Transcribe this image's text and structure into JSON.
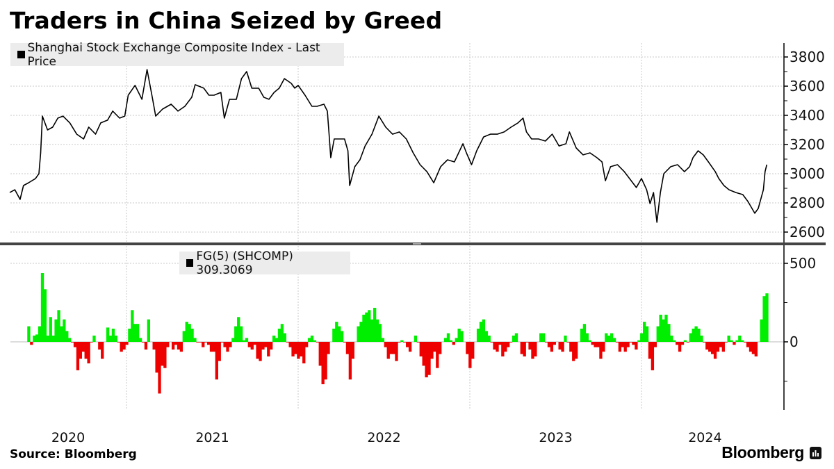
{
  "title": "Traders in China Seized by Greed",
  "footer": {
    "source": "Source: Bloomberg",
    "brand": "Bloomberg"
  },
  "colors": {
    "price": "#000000",
    "fg_positive": "#00ee00",
    "fg_negative": "#ee0000",
    "legend_bg": "#ececec"
  },
  "x_axis": {
    "range_years": [
      2020.32,
      2024.73
    ],
    "year_labels": [
      {
        "label": "2020",
        "center": 2020.66
      },
      {
        "label": "2021",
        "center": 2021.5
      },
      {
        "label": "2022",
        "center": 2022.5
      },
      {
        "label": "2023",
        "center": 2023.5
      },
      {
        "label": "2024",
        "center": 2024.37
      }
    ],
    "gridlines": [
      2021,
      2022,
      2023,
      2024
    ]
  },
  "chart_data": [
    {
      "type": "line",
      "title": "Traders in China Seized by Greed",
      "legend": "Shanghai Stock Exchange Composite Index - Last Price",
      "ylim": [
        2520,
        3890
      ],
      "yticks": [
        3800,
        3600,
        3400,
        3200,
        3000,
        2800,
        2600
      ],
      "ytick_labels": [
        "3800",
        "3600",
        "3400",
        "3200",
        "3000",
        "2800",
        "2600"
      ],
      "grid": true,
      "legend_placement": "top-left",
      "series": [
        [
          2020.32,
          2871
        ],
        [
          2020.35,
          2890
        ],
        [
          2020.38,
          2824
        ],
        [
          2020.4,
          2919
        ],
        [
          2020.43,
          2938
        ],
        [
          2020.47,
          2967
        ],
        [
          2020.49,
          3000
        ],
        [
          2020.5,
          3143
        ],
        [
          2020.51,
          3395
        ],
        [
          2020.54,
          3300
        ],
        [
          2020.57,
          3319
        ],
        [
          2020.6,
          3381
        ],
        [
          2020.63,
          3395
        ],
        [
          2020.67,
          3348
        ],
        [
          2020.71,
          3271
        ],
        [
          2020.75,
          3238
        ],
        [
          2020.78,
          3319
        ],
        [
          2020.82,
          3271
        ],
        [
          2020.85,
          3348
        ],
        [
          2020.89,
          3367
        ],
        [
          2020.92,
          3429
        ],
        [
          2020.96,
          3381
        ],
        [
          2020.99,
          3395
        ],
        [
          2021.01,
          3538
        ],
        [
          2021.05,
          3605
        ],
        [
          2021.09,
          3510
        ],
        [
          2021.12,
          3714
        ],
        [
          2021.15,
          3524
        ],
        [
          2021.17,
          3395
        ],
        [
          2021.21,
          3443
        ],
        [
          2021.26,
          3476
        ],
        [
          2021.3,
          3429
        ],
        [
          2021.34,
          3462
        ],
        [
          2021.38,
          3524
        ],
        [
          2021.4,
          3610
        ],
        [
          2021.45,
          3586
        ],
        [
          2021.48,
          3538
        ],
        [
          2021.51,
          3538
        ],
        [
          2021.55,
          3557
        ],
        [
          2021.57,
          3381
        ],
        [
          2021.6,
          3510
        ],
        [
          2021.64,
          3510
        ],
        [
          2021.67,
          3652
        ],
        [
          2021.7,
          3700
        ],
        [
          2021.73,
          3586
        ],
        [
          2021.77,
          3586
        ],
        [
          2021.8,
          3524
        ],
        [
          2021.83,
          3510
        ],
        [
          2021.86,
          3557
        ],
        [
          2021.89,
          3586
        ],
        [
          2021.92,
          3652
        ],
        [
          2021.96,
          3619
        ],
        [
          2021.98,
          3586
        ],
        [
          2022.0,
          3605
        ],
        [
          2022.04,
          3538
        ],
        [
          2022.08,
          3462
        ],
        [
          2022.11,
          3462
        ],
        [
          2022.15,
          3476
        ],
        [
          2022.17,
          3429
        ],
        [
          2022.18,
          3271
        ],
        [
          2022.19,
          3110
        ],
        [
          2022.21,
          3238
        ],
        [
          2022.24,
          3238
        ],
        [
          2022.27,
          3238
        ],
        [
          2022.29,
          3157
        ],
        [
          2022.3,
          2919
        ],
        [
          2022.33,
          3048
        ],
        [
          2022.36,
          3095
        ],
        [
          2022.39,
          3190
        ],
        [
          2022.43,
          3271
        ],
        [
          2022.47,
          3395
        ],
        [
          2022.51,
          3319
        ],
        [
          2022.55,
          3271
        ],
        [
          2022.59,
          3286
        ],
        [
          2022.63,
          3238
        ],
        [
          2022.67,
          3143
        ],
        [
          2022.71,
          3062
        ],
        [
          2022.75,
          3014
        ],
        [
          2022.79,
          2938
        ],
        [
          2022.83,
          3048
        ],
        [
          2022.87,
          3095
        ],
        [
          2022.91,
          3081
        ],
        [
          2022.96,
          3205
        ],
        [
          2022.98,
          3143
        ],
        [
          2023.01,
          3062
        ],
        [
          2023.04,
          3157
        ],
        [
          2023.08,
          3252
        ],
        [
          2023.12,
          3271
        ],
        [
          2023.16,
          3271
        ],
        [
          2023.2,
          3286
        ],
        [
          2023.24,
          3319
        ],
        [
          2023.28,
          3348
        ],
        [
          2023.31,
          3381
        ],
        [
          2023.33,
          3286
        ],
        [
          2023.36,
          3238
        ],
        [
          2023.4,
          3238
        ],
        [
          2023.44,
          3224
        ],
        [
          2023.48,
          3271
        ],
        [
          2023.52,
          3190
        ],
        [
          2023.56,
          3205
        ],
        [
          2023.58,
          3286
        ],
        [
          2023.62,
          3176
        ],
        [
          2023.66,
          3129
        ],
        [
          2023.7,
          3143
        ],
        [
          2023.74,
          3110
        ],
        [
          2023.77,
          3081
        ],
        [
          2023.79,
          2952
        ],
        [
          2023.82,
          3048
        ],
        [
          2023.86,
          3062
        ],
        [
          2023.9,
          3014
        ],
        [
          2023.94,
          2952
        ],
        [
          2023.97,
          2905
        ],
        [
          2024.0,
          2967
        ],
        [
          2024.03,
          2890
        ],
        [
          2024.05,
          2795
        ],
        [
          2024.07,
          2871
        ],
        [
          2024.09,
          2667
        ],
        [
          2024.11,
          2871
        ],
        [
          2024.13,
          3000
        ],
        [
          2024.17,
          3048
        ],
        [
          2024.21,
          3062
        ],
        [
          2024.25,
          3014
        ],
        [
          2024.28,
          3048
        ],
        [
          2024.3,
          3110
        ],
        [
          2024.33,
          3157
        ],
        [
          2024.36,
          3129
        ],
        [
          2024.39,
          3081
        ],
        [
          2024.43,
          3014
        ],
        [
          2024.45,
          2967
        ],
        [
          2024.48,
          2919
        ],
        [
          2024.51,
          2890
        ],
        [
          2024.55,
          2871
        ],
        [
          2024.59,
          2857
        ],
        [
          2024.62,
          2810
        ],
        [
          2024.66,
          2729
        ],
        [
          2024.68,
          2762
        ],
        [
          2024.71,
          2890
        ],
        [
          2024.72,
          3014
        ],
        [
          2024.73,
          3062
        ]
      ]
    },
    {
      "type": "area",
      "legend": "FG(5) (SHCOMP) 309.3069",
      "last_value": 309.3069,
      "ylim": [
        -440,
        560
      ],
      "yticks": [
        500,
        0
      ],
      "ytick_labels": [
        "500",
        "0"
      ],
      "minor_ticks": [
        250,
        -250
      ],
      "x_start": 2020.43,
      "x_end": 2024.73,
      "values": [
        99,
        -19,
        40,
        47,
        99,
        438,
        335,
        40,
        158,
        40,
        143,
        202,
        99,
        143,
        69,
        25,
        -4,
        -34,
        -181,
        -108,
        -63,
        -108,
        -137,
        -4,
        40,
        0,
        -49,
        -108,
        0,
        91,
        40,
        84,
        40,
        -4,
        -63,
        -49,
        -19,
        84,
        202,
        114,
        114,
        25,
        -4,
        -49,
        143,
        0,
        -49,
        -196,
        -329,
        -152,
        -167,
        -34,
        0,
        -49,
        -19,
        -49,
        -63,
        69,
        128,
        114,
        84,
        25,
        -4,
        -4,
        -34,
        -4,
        -19,
        -63,
        -63,
        -240,
        -122,
        -4,
        -34,
        -63,
        -34,
        25,
        99,
        158,
        99,
        10,
        25,
        -34,
        -49,
        -19,
        -108,
        -122,
        -49,
        -34,
        -93,
        -49,
        40,
        25,
        84,
        114,
        55,
        -4,
        -34,
        -93,
        -78,
        -108,
        -93,
        -137,
        -34,
        25,
        40,
        10,
        -4,
        -152,
        -270,
        -240,
        -78,
        0,
        84,
        128,
        99,
        69,
        -4,
        -78,
        -240,
        -108,
        0,
        99,
        128,
        173,
        187,
        202,
        143,
        217,
        143,
        114,
        25,
        -34,
        -108,
        -78,
        -78,
        -122,
        -4,
        10,
        -4,
        -34,
        -63,
        0,
        40,
        -4,
        -93,
        -152,
        -226,
        -211,
        -108,
        -63,
        -167,
        -78,
        0,
        25,
        55,
        10,
        -19,
        25,
        84,
        69,
        0,
        -78,
        -167,
        -108,
        0,
        84,
        128,
        143,
        69,
        40,
        -4,
        -49,
        -63,
        -19,
        -93,
        -63,
        -34,
        -4,
        40,
        55,
        0,
        -78,
        -93,
        -4,
        -49,
        -108,
        -93,
        0,
        55,
        55,
        -4,
        -34,
        -63,
        -19,
        0,
        -49,
        -63,
        40,
        -4,
        -63,
        -122,
        -108,
        0,
        84,
        114,
        55,
        10,
        -19,
        -34,
        -34,
        -108,
        -63,
        55,
        40,
        55,
        25,
        -4,
        -63,
        -34,
        -63,
        -34,
        -4,
        -19,
        -49,
        10,
        55,
        128,
        99,
        -108,
        -181,
        -34,
        99,
        173,
        143,
        173,
        114,
        40,
        10,
        -19,
        -63,
        -19,
        10,
        -4,
        55,
        84,
        99,
        84,
        40,
        -4,
        -49,
        -63,
        -78,
        -108,
        -63,
        -34,
        -63,
        -4,
        40,
        10,
        -19,
        10,
        40,
        10,
        -4,
        -34,
        -63,
        -78,
        -93,
        0,
        143,
        291,
        309
      ]
    }
  ]
}
